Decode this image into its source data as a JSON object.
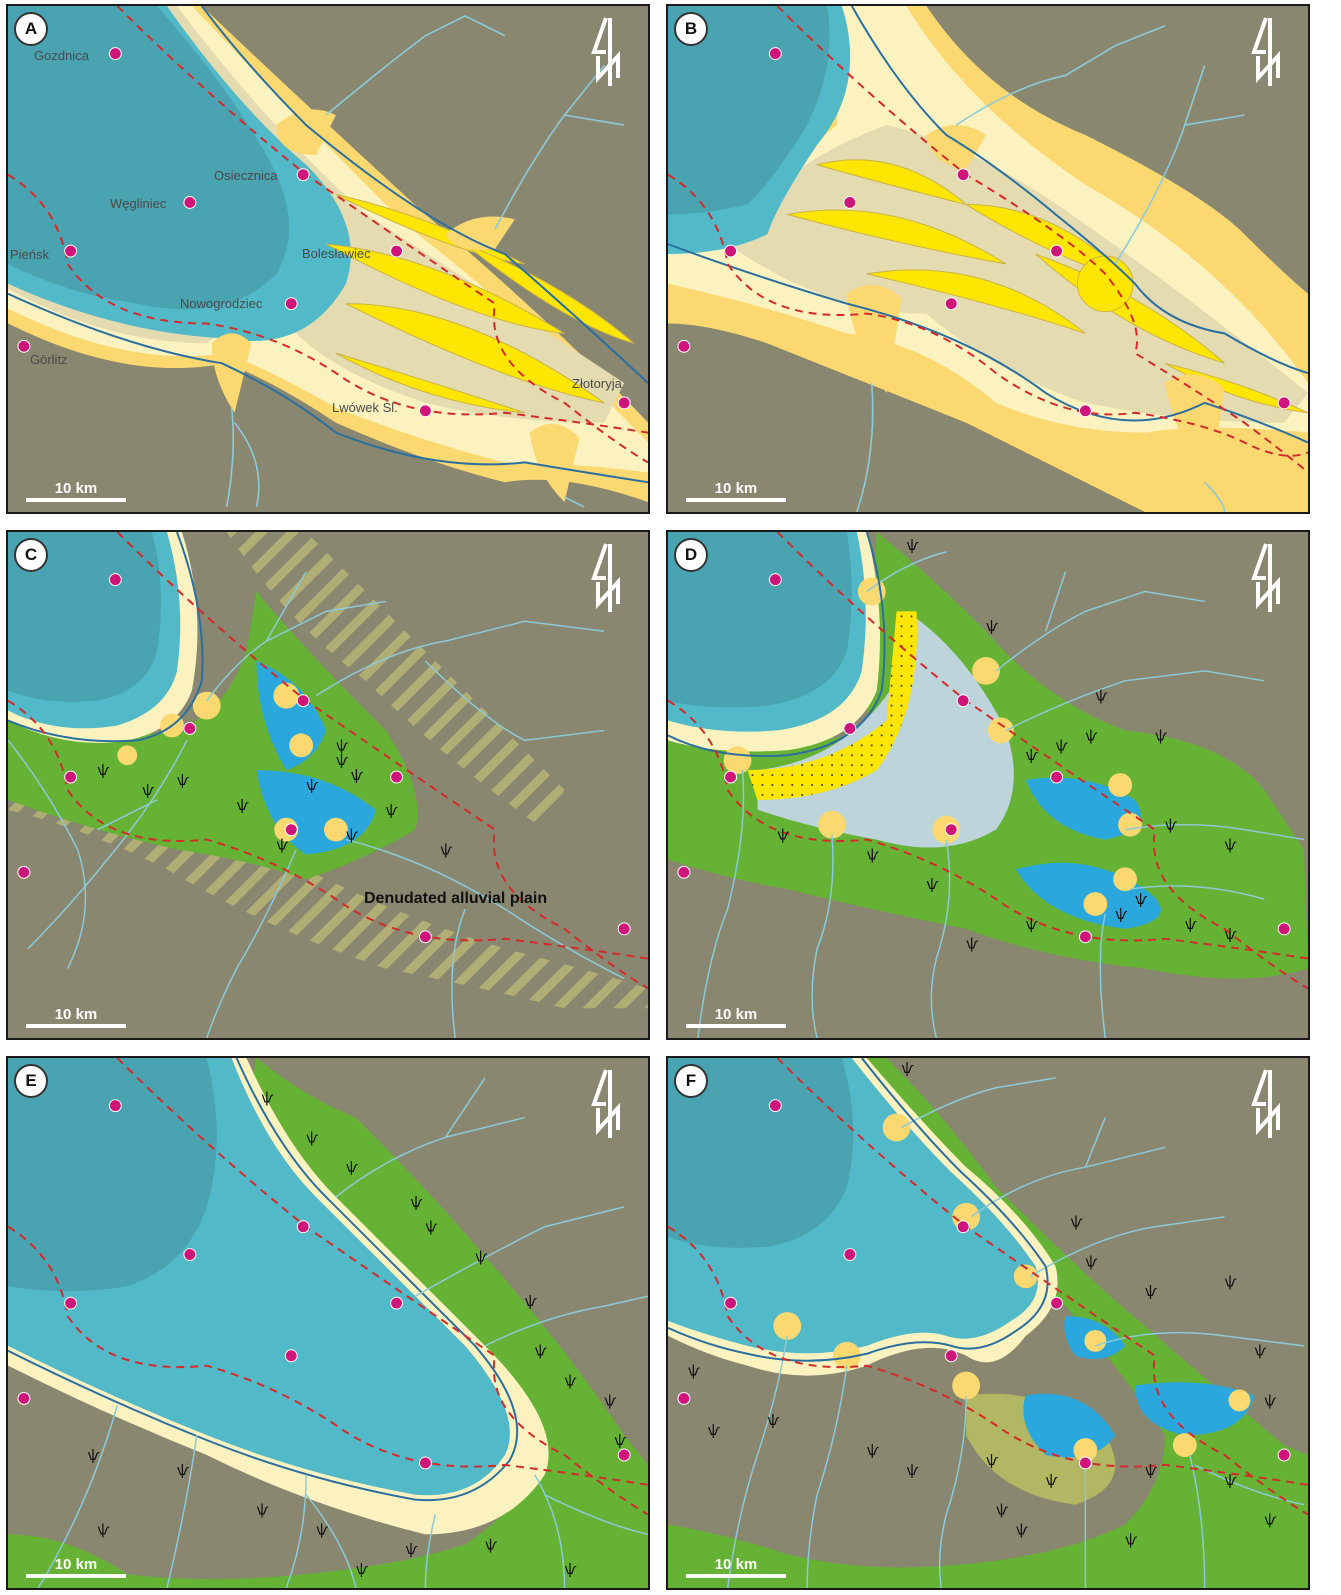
{
  "scale_label": "10 km",
  "north_symbol": "north-arrow-icon",
  "colors": {
    "lake_deep": "#4aa3b0",
    "lake_shallow": "#52b9c8",
    "shore": "#fbf2c0",
    "fan": "#fbd870",
    "sand_bar": "#ffe600",
    "delta_plain": "#e4dbb0",
    "wetland": "#66b234",
    "pond": "#2aa7dd",
    "river": "#8ccad8",
    "fault": "#d42a2a",
    "town_marker": "#d0157a",
    "bedrock": "#8a8770"
  },
  "panels": [
    {
      "label": "A",
      "towns": [
        "Gozdnica",
        "Osiecznica",
        "Węgliniec",
        "Pieńsk",
        "Bolesławiec",
        "Nowogrodziec",
        "Görlitz",
        "Złotoryja",
        "Lwówek Śl."
      ],
      "annotation": ""
    },
    {
      "label": "B",
      "towns": [],
      "annotation": ""
    },
    {
      "label": "C",
      "towns": [],
      "annotation": "Denudated alluvial plain"
    },
    {
      "label": "D",
      "towns": [],
      "annotation": ""
    },
    {
      "label": "E",
      "towns": [],
      "annotation": ""
    },
    {
      "label": "F",
      "towns": [],
      "annotation": ""
    }
  ]
}
